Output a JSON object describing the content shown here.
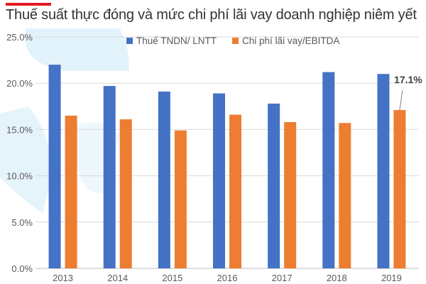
{
  "colors": {
    "accent": "#e31b23",
    "series_1": "#4472c4",
    "series_2": "#ed7d31",
    "grid": "#d9d9d9",
    "axis_text": "#595959",
    "decoration": "#bfe3f5"
  },
  "chart_data": {
    "type": "bar",
    "title": "Thuế suất thực đóng và mức chi phí lãi vay doanh nghiệp niêm yết",
    "xlabel": "",
    "ylabel": "",
    "categories": [
      "2013",
      "2014",
      "2015",
      "2016",
      "2017",
      "2018",
      "2019"
    ],
    "series": [
      {
        "name": "Thuế TNDN/ LNTT",
        "values": [
          22.0,
          19.7,
          19.1,
          18.9,
          17.8,
          21.2,
          21.0
        ]
      },
      {
        "name": "Chi phí lãi vay/EBITDA",
        "values": [
          16.5,
          16.1,
          14.9,
          16.6,
          15.8,
          15.7,
          17.1
        ]
      }
    ],
    "ylim": [
      0,
      25
    ],
    "yticks": [
      "0.0%",
      "5.0%",
      "10.0%",
      "15.0%",
      "20.0%",
      "25.0%"
    ],
    "ytick_values": [
      0,
      5,
      10,
      15,
      20,
      25
    ],
    "grid": true,
    "legend_position": "top",
    "annotation": {
      "text": "17.1%",
      "series": 1,
      "category": "2019"
    }
  }
}
